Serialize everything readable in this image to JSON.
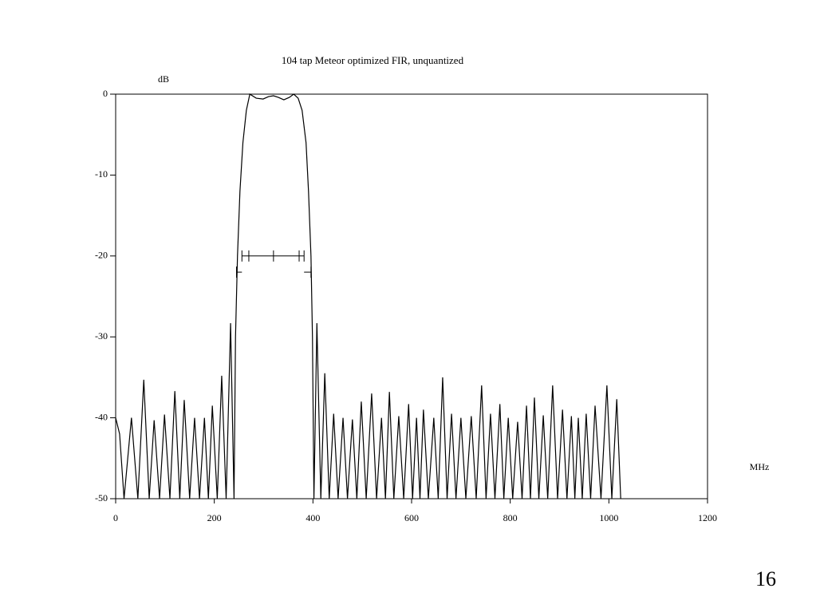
{
  "chart_data": {
    "type": "line",
    "title": "104 tap Meteor optimized FIR, unquantized",
    "y_label": "dB",
    "x_label": "MHz",
    "page_number": "16",
    "color": "#000000",
    "xlim": [
      0,
      1200
    ],
    "ylim": [
      -50,
      0
    ],
    "xticks": [
      0,
      200,
      400,
      600,
      800,
      1000,
      1200
    ],
    "yticks": [
      0,
      -10,
      -20,
      -30,
      -40,
      -50
    ],
    "x": [
      0,
      8,
      17,
      32,
      45,
      57,
      68,
      78,
      89,
      99,
      110,
      120,
      130,
      139,
      150,
      160,
      170,
      180,
      188,
      196,
      206,
      215,
      224,
      233,
      240,
      243,
      247,
      252,
      258,
      265,
      272,
      285,
      299,
      310,
      320,
      330,
      341,
      352,
      361,
      370,
      378,
      386,
      391,
      396,
      399,
      402,
      408,
      416,
      424,
      433,
      442,
      451,
      461,
      470,
      480,
      489,
      498,
      508,
      519,
      529,
      539,
      547,
      555,
      564,
      574,
      584,
      594,
      602,
      610,
      617,
      624,
      634,
      645,
      654,
      663,
      672,
      681,
      690,
      700,
      710,
      721,
      731,
      742,
      751,
      760,
      769,
      779,
      787,
      796,
      805,
      815,
      824,
      833,
      841,
      849,
      858,
      867,
      876,
      886,
      896,
      906,
      915,
      924,
      931,
      938,
      946,
      954,
      963,
      972,
      984,
      996,
      1006,
      1016,
      1024
    ],
    "values": [
      -40,
      -42,
      -50,
      -40,
      -50,
      -35.3,
      -50,
      -40.3,
      -50,
      -39.6,
      -50,
      -36.7,
      -50,
      -37.8,
      -50,
      -40,
      -50,
      -40,
      -50,
      -38.5,
      -50,
      -34.8,
      -50,
      -28.3,
      -50,
      -30,
      -20,
      -12,
      -6,
      -2,
      0,
      -0.5,
      -0.6,
      -0.3,
      -0.2,
      -0.4,
      -0.7,
      -0.4,
      0,
      -0.5,
      -2,
      -6,
      -12,
      -20,
      -30,
      -50,
      -28.3,
      -50,
      -34.5,
      -50,
      -39.5,
      -50,
      -40,
      -50,
      -40.2,
      -50,
      -38,
      -50,
      -37,
      -50,
      -40,
      -50,
      -36.8,
      -50,
      -39.8,
      -50,
      -38.3,
      -50,
      -40,
      -50,
      -39,
      -50,
      -40,
      -50,
      -35,
      -50,
      -39.5,
      -50,
      -40,
      -50,
      -39.8,
      -50,
      -36,
      -50,
      -39.5,
      -50,
      -38.3,
      -50,
      -40,
      -50,
      -40.5,
      -50,
      -38.5,
      -50,
      -37.5,
      -50,
      -39.7,
      -50,
      -36,
      -50,
      -39,
      -50,
      -39.8,
      -50,
      -40,
      -50,
      -39.5,
      -50,
      -38.5,
      -50,
      -36,
      -50,
      -37.7,
      -50
    ],
    "bracket": {
      "y": -20,
      "ticks": [
        256,
        270,
        320,
        372,
        382
      ],
      "outer_y": -22,
      "outer_ticks": [
        245,
        396
      ]
    }
  }
}
